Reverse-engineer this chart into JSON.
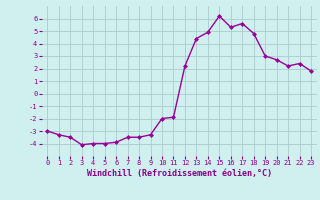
{
  "x": [
    0,
    1,
    2,
    3,
    4,
    5,
    6,
    7,
    8,
    9,
    10,
    11,
    12,
    13,
    14,
    15,
    16,
    17,
    18,
    19,
    20,
    21,
    22,
    23
  ],
  "y": [
    -3,
    -3.3,
    -3.5,
    -4.1,
    -4.0,
    -4.0,
    -3.9,
    -3.5,
    -3.5,
    -3.3,
    -2.0,
    -1.9,
    2.2,
    4.4,
    4.9,
    6.2,
    5.3,
    5.6,
    4.8,
    3.0,
    2.7,
    2.2,
    2.4,
    1.8
  ],
  "line_color": "#990099",
  "marker": "D",
  "marker_size": 2.0,
  "marker_linewidth": 0.5,
  "bg_color": "#d0f0f0",
  "grid_color": "#aacccc",
  "xlabel": "Windchill (Refroidissement éolien,°C)",
  "xlabel_color": "#880088",
  "tick_color": "#880088",
  "ylim": [
    -5,
    7
  ],
  "xlim": [
    -0.5,
    23.5
  ],
  "yticks": [
    -4,
    -3,
    -2,
    -1,
    0,
    1,
    2,
    3,
    4,
    5,
    6
  ],
  "xticks": [
    0,
    1,
    2,
    3,
    4,
    5,
    6,
    7,
    8,
    9,
    10,
    11,
    12,
    13,
    14,
    15,
    16,
    17,
    18,
    19,
    20,
    21,
    22,
    23
  ],
  "tick_fontsize": 5.0,
  "xlabel_fontsize": 6.0,
  "linewidth": 1.0
}
